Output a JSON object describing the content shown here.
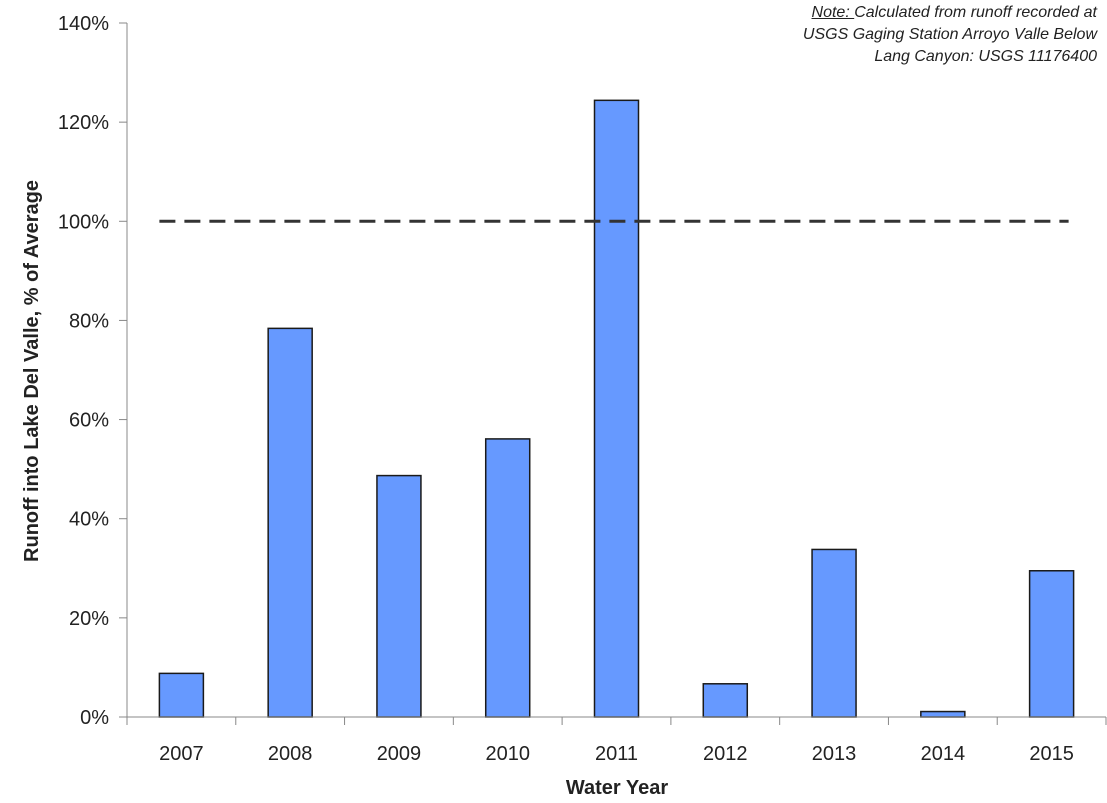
{
  "chart_data": {
    "type": "bar",
    "categories": [
      "2007",
      "2008",
      "2009",
      "2010",
      "2011",
      "2012",
      "2013",
      "2014",
      "2015"
    ],
    "values": [
      8.8,
      78.4,
      48.7,
      56.1,
      124.4,
      6.7,
      33.8,
      1.1,
      29.5
    ],
    "reference_line": {
      "value": 100,
      "style": "dashed",
      "from": "2007",
      "to": "2015",
      "color": "#333333"
    },
    "xlabel": "Water Year",
    "ylabel": "Runoff into Lake Del Valle, % of Average",
    "ylim": [
      0,
      140
    ],
    "yticks": [
      "0%",
      "20%",
      "40%",
      "60%",
      "80%",
      "100%",
      "120%",
      "140%"
    ],
    "bar_color": "#6699FF",
    "bar_edge_color": "#1a1a1a",
    "grid": false,
    "note": {
      "prefix": "Note: ",
      "line1": "Calculated from runoff recorded at",
      "line2": "USGS Gaging Station Arroyo Valle Below",
      "line3": "Lang Canyon: USGS 11176400"
    }
  }
}
